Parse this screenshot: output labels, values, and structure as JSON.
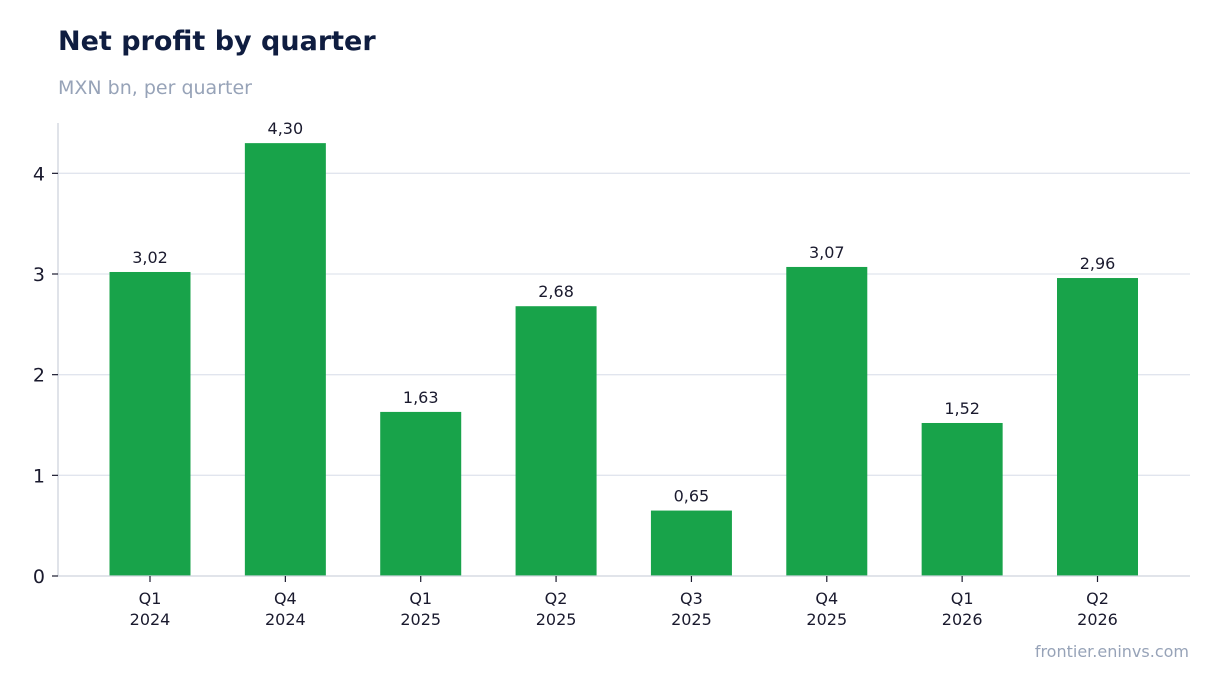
{
  "header": {
    "title": "Net profit by quarter",
    "subtitle": "MXN bn, per quarter"
  },
  "footer": {
    "source": "frontier.eninvs.com"
  },
  "colors": {
    "bar": "#18a34a",
    "grid": "#e1e5ee",
    "axis": "#cfd4dd",
    "text": "#1a1a2e"
  },
  "chart_data": {
    "type": "bar",
    "title": "Net profit by quarter",
    "subtitle": "MXN bn, per quarter",
    "categories": [
      [
        "Q1",
        "2024"
      ],
      [
        "Q4",
        "2024"
      ],
      [
        "Q1",
        "2025"
      ],
      [
        "Q2",
        "2025"
      ],
      [
        "Q3",
        "2025"
      ],
      [
        "Q4",
        "2025"
      ],
      [
        "Q1",
        "2026"
      ],
      [
        "Q2",
        "2026"
      ]
    ],
    "values": [
      3.02,
      4.3,
      1.63,
      2.68,
      0.65,
      3.07,
      1.52,
      2.96
    ],
    "data_labels": [
      "3,02",
      "4,30",
      "1,63",
      "2,68",
      "0,65",
      "3,07",
      "1,52",
      "2,96"
    ],
    "yticks": [
      0,
      1,
      2,
      3,
      4
    ],
    "ylim": [
      0,
      4.5
    ],
    "grid": true,
    "legend": "none"
  }
}
